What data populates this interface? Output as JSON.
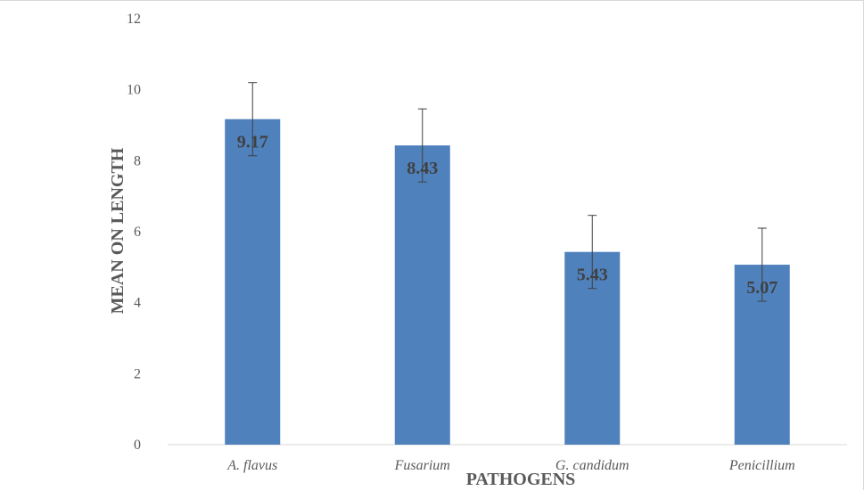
{
  "chart_data": {
    "type": "bar",
    "categories": [
      "A. flavus",
      "Fusarium",
      "G. candidum",
      "Penicillium"
    ],
    "values": [
      9.17,
      8.43,
      5.43,
      5.07
    ],
    "error": [
      1.03,
      1.03,
      1.03,
      1.03
    ],
    "data_labels": [
      "9.17",
      "8.43",
      "5.43",
      "5.07"
    ],
    "xlabel": "PATHOGENS",
    "ylabel": "MEAN ON LENGTH",
    "ylim": [
      0,
      12
    ],
    "yticks": [
      "0",
      "2",
      "4",
      "6",
      "8",
      "10",
      "12"
    ],
    "grid": false,
    "bar_color": "#4f81bd",
    "legend": "none"
  }
}
